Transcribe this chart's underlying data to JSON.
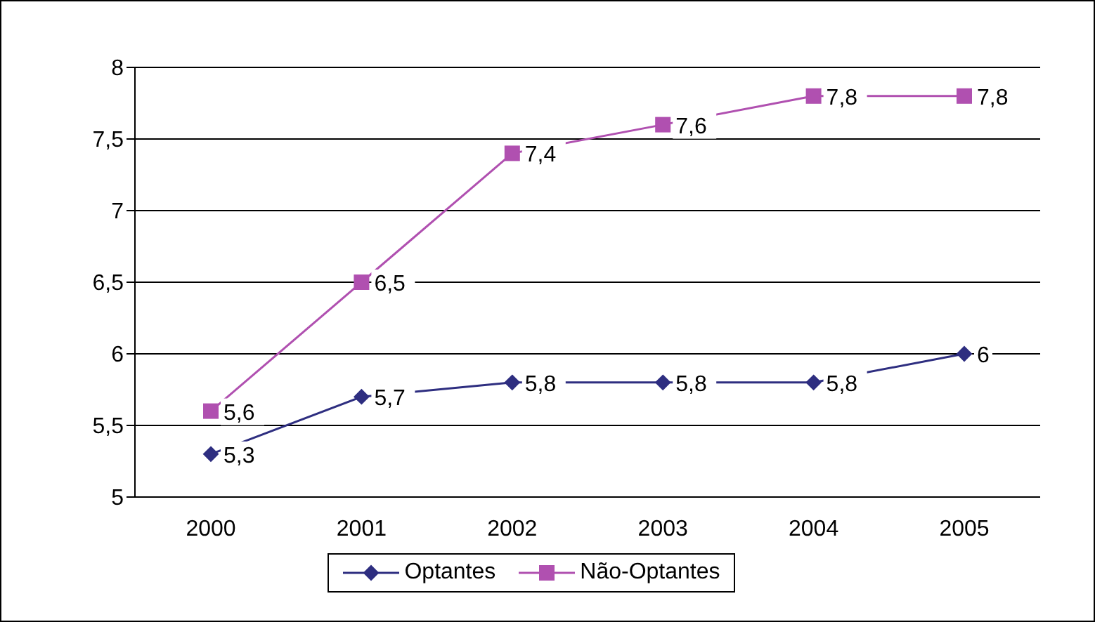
{
  "chart_data": {
    "type": "line",
    "categories": [
      "2000",
      "2001",
      "2002",
      "2003",
      "2004",
      "2005"
    ],
    "series": [
      {
        "name": "Optantes",
        "color": "#2e2e80",
        "marker": "diamond",
        "values": [
          5.3,
          5.7,
          5.8,
          5.8,
          5.8,
          6
        ],
        "value_labels": [
          "5,3",
          "5,7",
          "5,8",
          "5,8",
          "5,8",
          "6"
        ]
      },
      {
        "name": "Não-Optantes",
        "color": "#b050b0",
        "marker": "square",
        "values": [
          5.6,
          6.5,
          7.4,
          7.6,
          7.8,
          7.8
        ],
        "value_labels": [
          "5,6",
          "6,5",
          "7,4",
          "7,6",
          "7,8",
          "7,8"
        ]
      }
    ],
    "ylim": [
      5,
      8
    ],
    "yticks": [
      5,
      {
        "value": 5.5,
        "label": "5,5"
      },
      6,
      {
        "value": 6.5,
        "label": "6,5"
      },
      7,
      {
        "value": 7.5,
        "label": "7,5"
      },
      8
    ],
    "grid": "y",
    "legend": "bottom"
  }
}
